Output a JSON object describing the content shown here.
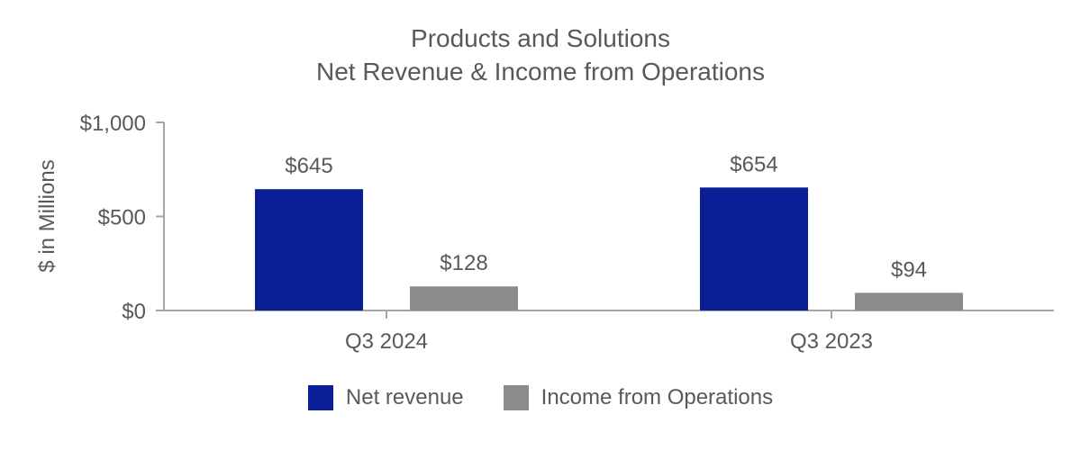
{
  "chart_data": {
    "type": "bar",
    "title": "Products and Solutions",
    "subtitle": "Net Revenue & Income from Operations",
    "ylabel": "$ in Millions",
    "xlabel": "",
    "ylim": [
      0,
      1000
    ],
    "yticks": [
      0,
      500,
      1000
    ],
    "ytick_labels": [
      "$0",
      "$500",
      "$1,000"
    ],
    "categories": [
      "Q3 2024",
      "Q3 2023"
    ],
    "series": [
      {
        "name": "Net revenue",
        "color": "#0a1f96",
        "values": [
          645,
          654
        ],
        "labels": [
          "$645",
          "$654"
        ]
      },
      {
        "name": "Income from Operations",
        "color": "#8c8c8c",
        "values": [
          128,
          94
        ],
        "labels": [
          "$128",
          "$94"
        ]
      }
    ],
    "legend_position": "bottom"
  }
}
